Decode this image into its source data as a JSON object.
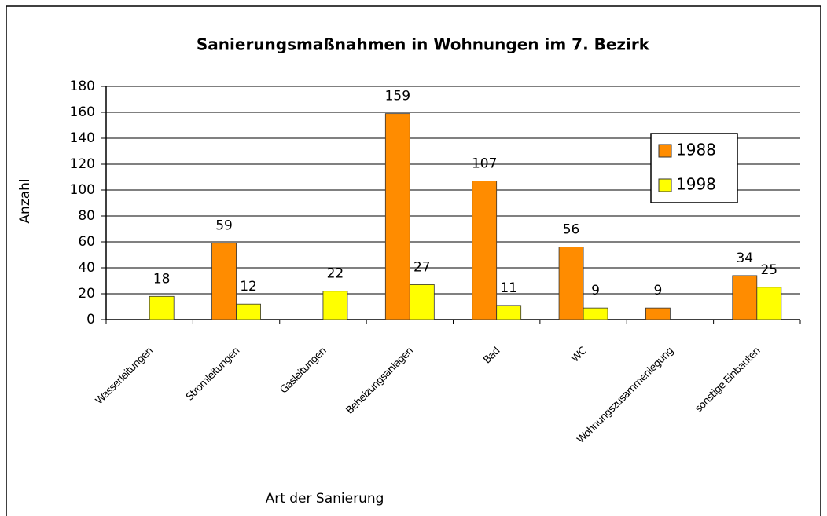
{
  "chart_data": {
    "type": "bar",
    "title": "Sanierungsmaßnahmen in Wohnungen im 7. Bezirk",
    "x_label": "Art der Sanierung",
    "y_label": "Anzahl",
    "categories": [
      "Wasserleitungen",
      "Stromleitungen",
      "Gasleitungen",
      "Beheizungsanlagen",
      "Bad",
      "WC",
      "Wohnungszusammenlegung",
      "sonstige Einbauten"
    ],
    "series": [
      {
        "name": "1988",
        "color": "#ff8c00",
        "values": [
          null,
          59,
          null,
          159,
          107,
          56,
          9,
          34
        ]
      },
      {
        "name": "1998",
        "color": "#ffff00",
        "values": [
          18,
          12,
          22,
          27,
          11,
          9,
          null,
          25
        ]
      }
    ],
    "ylim": [
      0,
      180
    ],
    "yticks": [
      0,
      20,
      40,
      60,
      80,
      100,
      120,
      140,
      160,
      180
    ],
    "grid": true,
    "legend": "right"
  }
}
